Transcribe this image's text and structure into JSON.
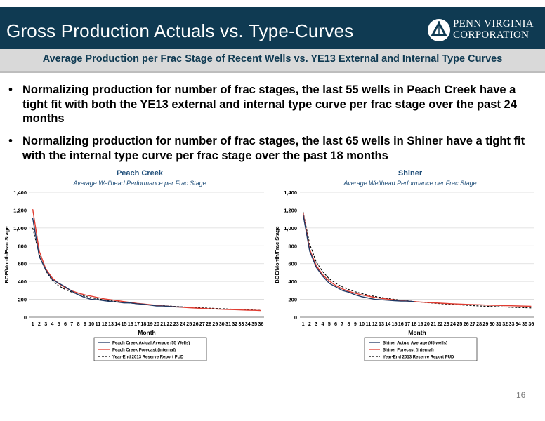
{
  "header": {
    "title": "Gross Production Actuals vs. Type-Curves",
    "logo_text_line1": "PENN VIRGINIA",
    "logo_text_line2": "CORPORATION"
  },
  "subtitle": "Average Production per Frac Stage of Recent Wells vs. YE13 External and Internal Type Curves",
  "bullets": [
    "Normalizing production for number of frac stages, the last 55 wells in Peach Creek have a tight fit with both the YE13 external and internal type curve per frac stage over the past 24 months",
    "Normalizing production for number of frac stages, the last 65 wells in Shiner have a tight fit with the internal type curve per frac stage over the past 18 months"
  ],
  "page_number": "16",
  "chart_data": [
    {
      "type": "line",
      "title": "Peach Creek",
      "subtitle": "Average Wellhead Performance per Frac Stage",
      "xlabel": "Month",
      "ylabel": "BOE/Month/Frac Stage",
      "ylim": [
        0,
        1400
      ],
      "yticks": [
        "0",
        "200",
        "400",
        "600",
        "800",
        "1,000",
        "1,200",
        "1,400"
      ],
      "x": [
        1,
        2,
        3,
        4,
        5,
        6,
        7,
        8,
        9,
        10,
        11,
        12,
        13,
        14,
        15,
        16,
        17,
        18,
        19,
        20,
        21,
        22,
        23,
        24,
        25,
        26,
        27,
        28,
        29,
        30,
        31,
        32,
        33,
        34,
        35,
        36
      ],
      "grid": "horizontal",
      "legend_position": "bottom",
      "series": [
        {
          "name": "Peach Creek Actual Average (55 Wells)",
          "color": "#1f3864",
          "style": "solid",
          "values": [
            1110,
            680,
            530,
            420,
            380,
            340,
            290,
            250,
            220,
            200,
            195,
            185,
            175,
            170,
            160,
            160,
            150,
            145,
            135,
            125,
            125,
            120,
            115,
            115,
            null,
            null,
            null,
            null,
            null,
            null,
            null,
            null,
            null,
            null,
            null,
            null
          ]
        },
        {
          "name": "Peach Creek Forecast (internal)",
          "color": "#e03c31",
          "style": "solid",
          "values": [
            1210,
            740,
            540,
            440,
            375,
            330,
            295,
            270,
            250,
            235,
            220,
            205,
            195,
            185,
            175,
            165,
            155,
            148,
            140,
            133,
            127,
            121,
            116,
            111,
            106,
            102,
            98,
            95,
            92,
            89,
            86,
            84,
            81,
            79,
            77,
            75
          ]
        },
        {
          "name": "Year-End 2013 Reserve Report PUD",
          "color": "#000000",
          "style": "dashed",
          "values": [
            1000,
            700,
            520,
            410,
            350,
            310,
            280,
            255,
            235,
            218,
            205,
            193,
            183,
            174,
            166,
            158,
            151,
            145,
            139,
            134,
            129,
            124,
            120,
            116,
            112,
            108,
            105,
            101,
            98,
            95,
            92,
            89,
            86,
            83,
            80,
            77
          ]
        }
      ]
    },
    {
      "type": "line",
      "title": "Shiner",
      "subtitle": "Average Wellhead Performance per Frac Stage",
      "xlabel": "Month",
      "ylabel": "BOE/Month/Frac Stage",
      "ylim": [
        0,
        1400
      ],
      "yticks": [
        "0",
        "200",
        "400",
        "600",
        "800",
        "1,000",
        "1,200",
        "1,400"
      ],
      "x": [
        1,
        2,
        3,
        4,
        5,
        6,
        7,
        8,
        9,
        10,
        11,
        12,
        13,
        14,
        15,
        16,
        17,
        18,
        19,
        20,
        21,
        22,
        23,
        24,
        25,
        26,
        27,
        28,
        29,
        30,
        31,
        32,
        33,
        34,
        35,
        36
      ],
      "grid": "horizontal",
      "legend_position": "bottom",
      "series": [
        {
          "name": "Shiner Actual Average (65 wells)",
          "color": "#1f3864",
          "style": "solid",
          "values": [
            1150,
            740,
            560,
            460,
            380,
            340,
            300,
            280,
            250,
            230,
            215,
            200,
            195,
            190,
            185,
            180,
            180,
            175,
            null,
            null,
            null,
            null,
            null,
            null,
            null,
            null,
            null,
            null,
            null,
            null,
            null,
            null,
            null,
            null,
            null,
            null
          ]
        },
        {
          "name": "Shiner Forecast (internal)",
          "color": "#e03c31",
          "style": "solid",
          "values": [
            1170,
            760,
            580,
            475,
            405,
            355,
            318,
            290,
            268,
            250,
            235,
            222,
            211,
            202,
            194,
            187,
            180,
            175,
            170,
            165,
            161,
            157,
            153,
            150,
            147,
            144,
            141,
            139,
            136,
            134,
            132,
            130,
            128,
            126,
            124,
            122
          ]
        },
        {
          "name": "Year-End 2013 Reserve Report PUD",
          "color": "#000000",
          "style": "dashed",
          "values": [
            1180,
            820,
            620,
            510,
            430,
            380,
            340,
            310,
            285,
            265,
            248,
            233,
            221,
            210,
            200,
            191,
            183,
            176,
            169,
            163,
            157,
            152,
            147,
            142,
            138,
            134,
            130,
            126,
            123,
            120,
            117,
            114,
            111,
            108,
            106,
            104
          ]
        }
      ]
    }
  ]
}
